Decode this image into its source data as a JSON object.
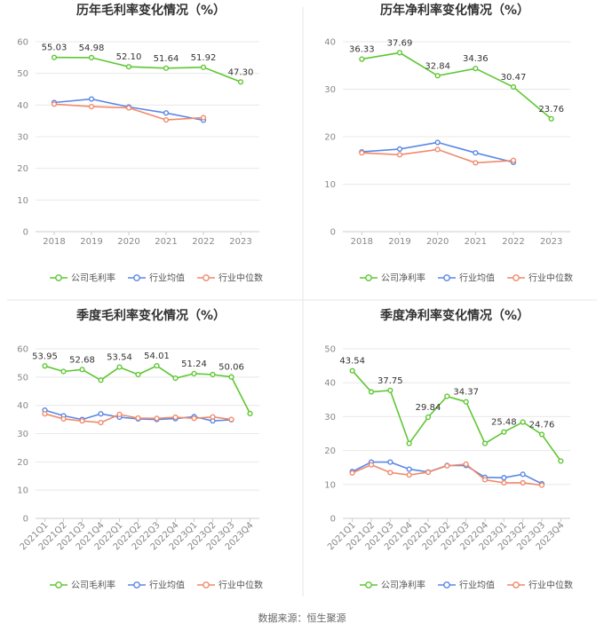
{
  "source": "数据来源：恒生聚源",
  "colors": {
    "company": "#5ec732",
    "avg": "#5b87e6",
    "median": "#f08a6b",
    "grid": "#e8e8e8",
    "axis": "#cccccc"
  },
  "chart_data": [
    {
      "type": "line",
      "title": "历年毛利率变化情况（%）",
      "x": [
        "2018",
        "2019",
        "2020",
        "2021",
        "2022",
        "2023"
      ],
      "ylim": [
        0,
        60
      ],
      "yticks": [
        0,
        10,
        20,
        30,
        40,
        50,
        60
      ],
      "grid": true,
      "legend": "bottom",
      "series": [
        {
          "name": "公司毛利率",
          "values": [
            55.03,
            54.98,
            52.1,
            51.64,
            51.92,
            47.3
          ],
          "labels": [
            "55.03",
            "54.98",
            "52.10",
            "51.64",
            "51.92",
            "47.30"
          ]
        },
        {
          "name": "行业均值",
          "values": [
            40.8,
            41.9,
            39.4,
            37.5,
            35.2,
            null
          ]
        },
        {
          "name": "行业中位数",
          "values": [
            40.3,
            39.5,
            39.1,
            35.3,
            36.0,
            null
          ]
        }
      ]
    },
    {
      "type": "line",
      "title": "历年净利率变化情况（%）",
      "x": [
        "2018",
        "2019",
        "2020",
        "2021",
        "2022",
        "2023"
      ],
      "ylim": [
        0,
        40
      ],
      "yticks": [
        0,
        10,
        20,
        30,
        40
      ],
      "grid": true,
      "legend": "bottom",
      "series": [
        {
          "name": "公司净利率",
          "values": [
            36.33,
            37.69,
            32.84,
            34.36,
            30.47,
            23.76
          ],
          "labels": [
            "36.33",
            "37.69",
            "32.84",
            "34.36",
            "30.47",
            "23.76"
          ]
        },
        {
          "name": "行业均值",
          "values": [
            16.8,
            17.4,
            18.8,
            16.6,
            14.6,
            null
          ]
        },
        {
          "name": "行业中位数",
          "values": [
            16.6,
            16.2,
            17.3,
            14.5,
            15.0,
            null
          ]
        }
      ]
    },
    {
      "type": "line",
      "title": "季度毛利率变化情况（%）",
      "x": [
        "2021Q1",
        "2021Q2",
        "2021Q3",
        "2021Q4",
        "2022Q1",
        "2022Q2",
        "2022Q3",
        "2022Q4",
        "2023Q1",
        "2023Q2",
        "2023Q3",
        "2023Q4"
      ],
      "ylim": [
        0,
        60
      ],
      "yticks": [
        0,
        10,
        20,
        30,
        40,
        50,
        60
      ],
      "grid": true,
      "legend": "bottom",
      "series": [
        {
          "name": "公司毛利率",
          "values": [
            53.95,
            52.0,
            52.68,
            48.9,
            53.54,
            50.9,
            54.01,
            49.6,
            51.24,
            50.9,
            50.06,
            37.1
          ],
          "labels": [
            "53.95",
            "",
            "52.68",
            "",
            "53.54",
            "",
            "54.01",
            "",
            "51.24",
            "",
            "50.06",
            ""
          ]
        },
        {
          "name": "行业均值",
          "values": [
            38.3,
            36.3,
            35.0,
            37.0,
            35.8,
            35.2,
            35.0,
            35.3,
            36.0,
            34.5,
            34.9,
            null
          ]
        },
        {
          "name": "行业中位数",
          "values": [
            37.0,
            35.2,
            34.5,
            33.9,
            36.8,
            35.5,
            35.4,
            35.8,
            35.4,
            35.9,
            35.0,
            null
          ]
        }
      ]
    },
    {
      "type": "line",
      "title": "季度净利率变化情况（%）",
      "x": [
        "2021Q1",
        "2021Q2",
        "2021Q3",
        "2021Q4",
        "2022Q1",
        "2022Q2",
        "2022Q3",
        "2022Q4",
        "2023Q1",
        "2023Q2",
        "2023Q3",
        "2023Q4"
      ],
      "ylim": [
        0,
        50
      ],
      "yticks": [
        0,
        10,
        20,
        30,
        40,
        50
      ],
      "grid": true,
      "legend": "bottom",
      "series": [
        {
          "name": "公司净利率",
          "values": [
            43.54,
            37.3,
            37.75,
            22.1,
            29.84,
            36.0,
            34.37,
            22.1,
            25.48,
            28.4,
            24.76,
            16.9
          ],
          "labels": [
            "43.54",
            "",
            "37.75",
            "",
            "29.84",
            "",
            "34.37",
            "",
            "25.48",
            "",
            "24.76",
            ""
          ]
        },
        {
          "name": "行业均值",
          "values": [
            13.8,
            16.6,
            16.6,
            14.5,
            13.7,
            15.6,
            15.6,
            12.1,
            12.0,
            13.0,
            10.2,
            null
          ]
        },
        {
          "name": "行业中位数",
          "values": [
            13.4,
            15.8,
            13.5,
            12.8,
            13.6,
            15.5,
            16.0,
            11.4,
            10.5,
            10.5,
            9.8,
            null
          ]
        }
      ]
    }
  ]
}
